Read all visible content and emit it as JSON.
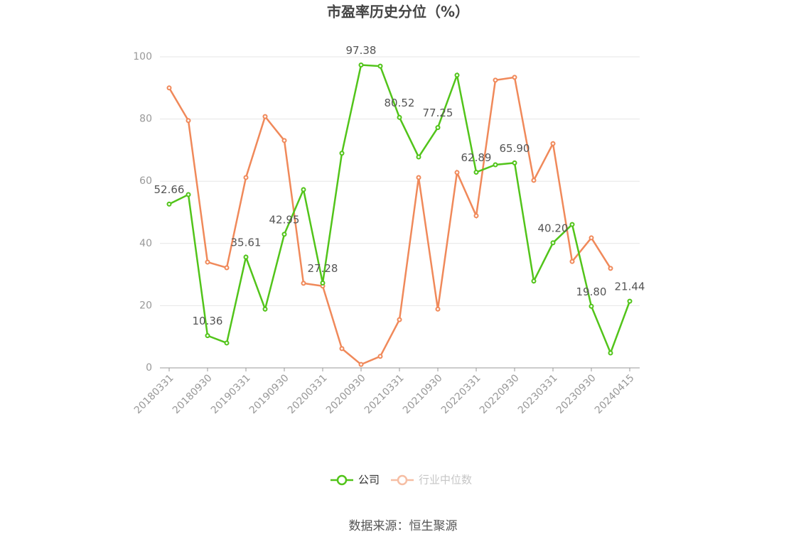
{
  "chart_data": {
    "type": "line",
    "title": "市盈率历史分位（%）",
    "categories": [
      "20180331",
      null,
      "20180930",
      null,
      "20190331",
      null,
      "20190930",
      null,
      "20200331",
      null,
      "20200930",
      null,
      "20210331",
      null,
      "20210930",
      null,
      "20220331",
      null,
      "20220930",
      null,
      "20230331",
      null,
      "20230930",
      null,
      "20240415"
    ],
    "series": [
      {
        "name": "公司",
        "color": "#52c41a",
        "values": [
          52.66,
          55.7,
          10.36,
          8.0,
          35.61,
          18.9,
          42.95,
          57.3,
          27.28,
          69.0,
          97.38,
          97.0,
          80.52,
          67.8,
          77.25,
          94.1,
          62.89,
          65.3,
          65.9,
          27.9,
          40.2,
          46.1,
          19.8,
          4.8,
          21.44
        ],
        "value_labels": [
          "52.66",
          null,
          "10.36",
          null,
          "35.61",
          null,
          "42.95",
          null,
          "27.28",
          null,
          "97.38",
          null,
          "80.52",
          null,
          "77.25",
          null,
          "62.89",
          null,
          "65.90",
          null,
          "40.20",
          null,
          "19.80",
          null,
          "21.44"
        ]
      },
      {
        "name": "行业中位数",
        "color": "#f0895a",
        "values": [
          90.0,
          79.5,
          34.0,
          32.2,
          61.2,
          80.8,
          73.1,
          27.2,
          26.3,
          6.2,
          1.1,
          3.7,
          15.5,
          61.2,
          18.9,
          62.8,
          48.9,
          92.5,
          93.4,
          60.3,
          72.1,
          34.2,
          41.8,
          32.0,
          null
        ]
      }
    ],
    "ylim": [
      0,
      100
    ],
    "yticks": [
      0,
      20,
      40,
      60,
      80,
      100
    ],
    "grid": true,
    "source": "数据来源：恒生聚源"
  }
}
